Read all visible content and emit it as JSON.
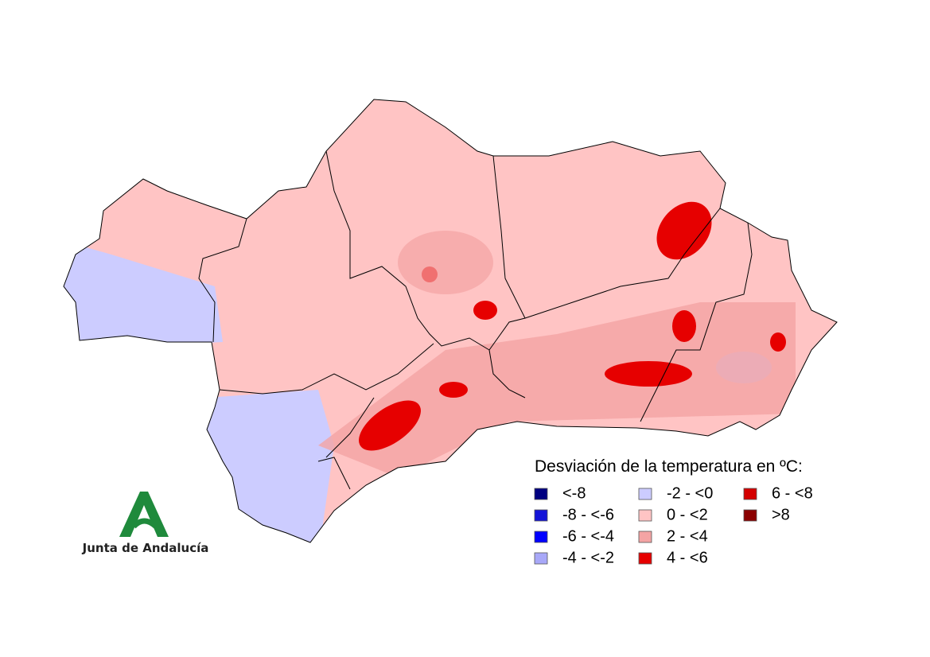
{
  "legend": {
    "title": "Desviación de la temperatura en ºC:",
    "items": [
      {
        "label": "<-8",
        "color": "#000080"
      },
      {
        "label": "-8 - <-6",
        "color": "#1414d8"
      },
      {
        "label": "-6 - <-4",
        "color": "#0000ff"
      },
      {
        "label": "-4 - <-2",
        "color": "#a8a8f8"
      },
      {
        "label": "-2 - <0",
        "color": "#ccccff"
      },
      {
        "label": "0 - <2",
        "color": "#ffc4c4"
      },
      {
        "label": "2 - <4",
        "color": "#f4a4a4"
      },
      {
        "label": "4 - <6",
        "color": "#e60000"
      },
      {
        "label": "6 - <8",
        "color": "#d40000"
      },
      {
        "label": ">8",
        "color": "#8b0000"
      }
    ]
  },
  "logo": {
    "text": "Junta de Andalucía"
  }
}
